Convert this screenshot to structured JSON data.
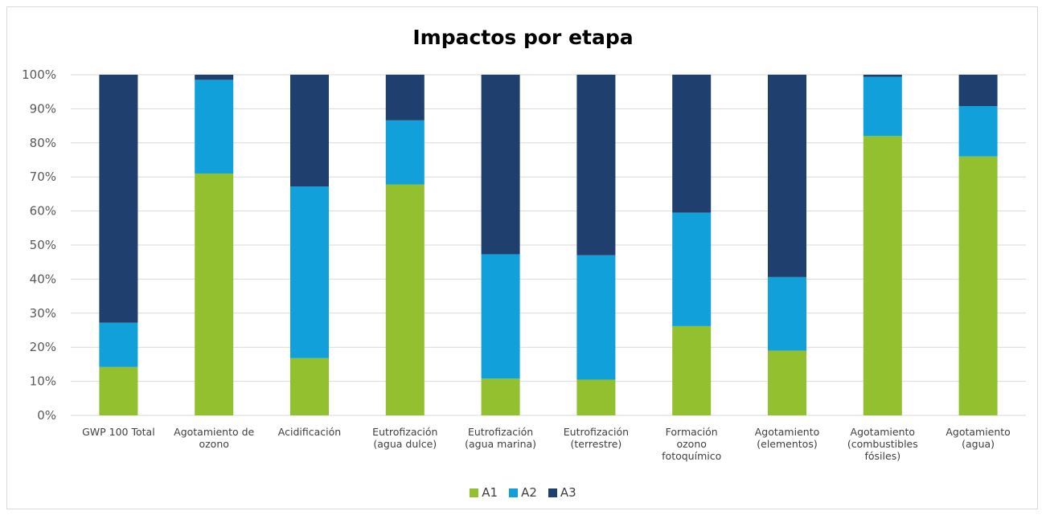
{
  "chart_data": {
    "type": "bar",
    "stacked": true,
    "title": "Impactos por etapa",
    "xlabel": "",
    "ylabel": "",
    "ylim": [
      0,
      100
    ],
    "y_ticks": [
      "0%",
      "10%",
      "20%",
      "30%",
      "40%",
      "50%",
      "60%",
      "70%",
      "80%",
      "90%",
      "100%"
    ],
    "grid": true,
    "legend_position": "bottom",
    "categories": [
      [
        "GWP 100 Total"
      ],
      [
        "Agotamiento de",
        "ozono"
      ],
      [
        "Acidificación"
      ],
      [
        "Eutrofización",
        "(agua dulce)"
      ],
      [
        "Eutrofización",
        "(agua marina)"
      ],
      [
        "Eutrofización",
        "(terrestre)"
      ],
      [
        "Formación",
        "ozono",
        "fotoquímico"
      ],
      [
        "Agotamiento",
        "(elementos)"
      ],
      [
        "Agotamiento",
        "(combustibles",
        "fósiles)"
      ],
      [
        "Agotamiento",
        "(agua)"
      ]
    ],
    "series": [
      {
        "name": "A1",
        "color": "#93c02f",
        "values": [
          14.2,
          71.0,
          16.8,
          67.8,
          10.8,
          10.5,
          26.2,
          19.0,
          82.0,
          76.0
        ]
      },
      {
        "name": "A2",
        "color": "#11a0d9",
        "values": [
          13.0,
          27.5,
          50.4,
          18.8,
          36.5,
          36.5,
          33.3,
          21.6,
          17.4,
          14.8
        ]
      },
      {
        "name": "A3",
        "color": "#1f3f6e",
        "values": [
          72.8,
          1.5,
          32.8,
          13.4,
          52.7,
          53.0,
          40.5,
          59.4,
          0.6,
          9.2
        ]
      }
    ]
  }
}
